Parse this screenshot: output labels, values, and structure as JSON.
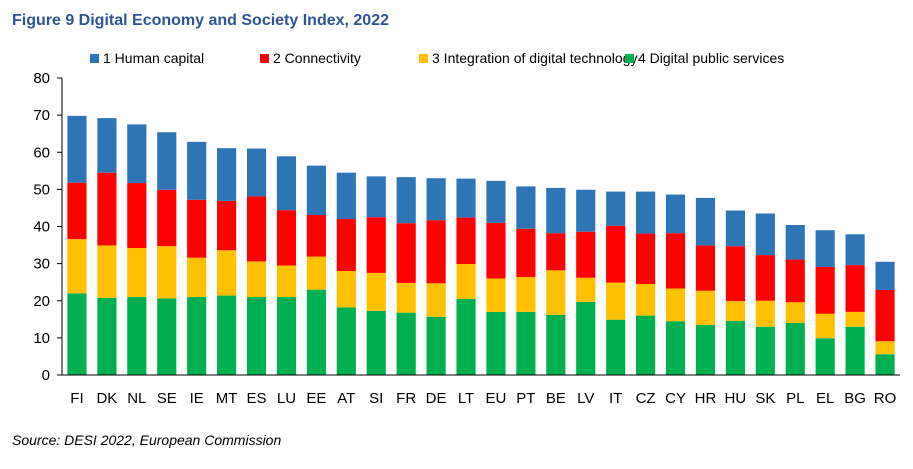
{
  "figure": {
    "title": "Figure 9 Digital Economy and Society Index, 2022",
    "source": "Source: DESI 2022, European Commission"
  },
  "chart_data": {
    "type": "bar",
    "stacked": true,
    "categories": [
      "FI",
      "DK",
      "NL",
      "SE",
      "IE",
      "MT",
      "ES",
      "LU",
      "EE",
      "AT",
      "SI",
      "FR",
      "DE",
      "LT",
      "EU",
      "PT",
      "BE",
      "LV",
      "IT",
      "CZ",
      "CY",
      "HR",
      "HU",
      "SK",
      "PL",
      "EL",
      "BG",
      "RO"
    ],
    "series": [
      {
        "name": "1 Human capital",
        "color": "#2e75b6",
        "values": [
          18,
          14.7,
          15.8,
          15.5,
          15.6,
          14.2,
          12.9,
          14.5,
          13.3,
          12.5,
          11,
          12.4,
          11.3,
          10.5,
          11.3,
          11.4,
          12.2,
          11.3,
          9.2,
          11.3,
          10.4,
          12.8,
          9.6,
          11.2,
          9.3,
          9.9,
          8.3,
          7.6
        ]
      },
      {
        "name": "2 Connectivity",
        "color": "#ff0000",
        "values": [
          15.2,
          19.6,
          17.5,
          15.2,
          15.6,
          13.3,
          17.5,
          14.9,
          11.2,
          14,
          15,
          16.1,
          17,
          12.5,
          15,
          13,
          10,
          12.4,
          15.3,
          13.6,
          14.9,
          12.2,
          14.8,
          12.3,
          11.5,
          12.6,
          12.6,
          13.8
        ]
      },
      {
        "name": "3 Integration of digital technology",
        "color": "#ffc000",
        "values": [
          14.6,
          14.1,
          13.2,
          14.1,
          10.6,
          12.2,
          9.6,
          8.5,
          8.9,
          9.8,
          10.2,
          8,
          9,
          9.4,
          9,
          9.4,
          12,
          6.5,
          10,
          8.5,
          8.8,
          9.2,
          5.3,
          7,
          5.6,
          6.6,
          4,
          3.5
        ]
      },
      {
        "name": "4 Digital public services",
        "color": "#00b050",
        "values": [
          22,
          20.8,
          21,
          20.6,
          21,
          21.4,
          21,
          21,
          23,
          18.2,
          17.3,
          16.8,
          15.7,
          20.5,
          17,
          17,
          16.2,
          19.7,
          14.9,
          16,
          14.5,
          13.5,
          14.6,
          13,
          14,
          9.9,
          13,
          5.6
        ]
      }
    ],
    "ylim": [
      0,
      80
    ],
    "yticks": [
      0,
      10,
      20,
      30,
      40,
      50,
      60,
      70,
      80
    ],
    "legend_position": "top",
    "grid": false
  }
}
